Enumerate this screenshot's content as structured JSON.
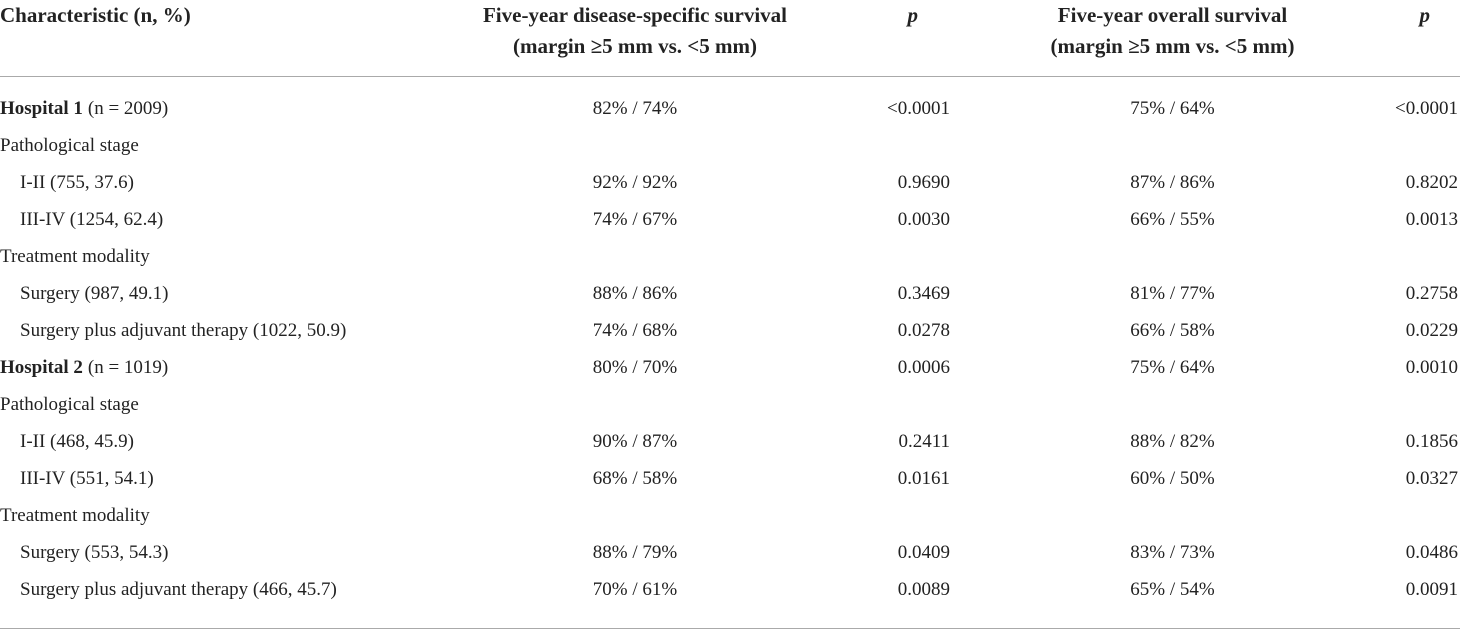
{
  "table": {
    "header": [
      [
        "Characteristic (n, %)"
      ],
      [
        "Five-year disease-specific survival",
        "(margin ≥5 mm vs. <5 mm)"
      ],
      [
        "p"
      ],
      [
        "Five-year overall survival",
        "(margin ≥5 mm vs. <5 mm)"
      ],
      [
        "p"
      ]
    ],
    "rows": [
      {
        "bold": "Hospital 1",
        "label": "(n = 2009)",
        "dss": "82% / 74%",
        "p_dss": "<0.0001",
        "os": "75% / 64%",
        "p_os": "<0.0001"
      },
      {
        "label": "Pathological stage"
      },
      {
        "label": "I-II (755, 37.6)",
        "dss": "92% / 92%",
        "p_dss": "0.9690",
        "os": "87% / 86%",
        "p_os": "0.8202"
      },
      {
        "label": "III-IV (1254, 62.4)",
        "dss": "74% / 67%",
        "p_dss": "0.0030",
        "os": "66% / 55%",
        "p_os": "0.0013"
      },
      {
        "label": "Treatment modality"
      },
      {
        "label": "Surgery (987, 49.1)",
        "dss": "88% / 86%",
        "p_dss": "0.3469",
        "os": "81% / 77%",
        "p_os": "0.2758"
      },
      {
        "label": "Surgery plus adjuvant therapy (1022, 50.9)",
        "dss": "74% / 68%",
        "p_dss": "0.0278",
        "os": "66% / 58%",
        "p_os": "0.0229"
      },
      {
        "bold": "Hospital 2",
        "label": "(n = 1019)",
        "dss": "80% / 70%",
        "p_dss": "0.0006",
        "os": "75% / 64%",
        "p_os": "0.0010"
      },
      {
        "label": "Pathological stage"
      },
      {
        "label": "I-II (468, 45.9)",
        "dss": "90% / 87%",
        "p_dss": "0.2411",
        "os": "88% / 82%",
        "p_os": "0.1856"
      },
      {
        "label": "III-IV (551, 54.1)",
        "dss": "68% / 58%",
        "p_dss": "0.0161",
        "os": "60% / 50%",
        "p_os": "0.0327"
      },
      {
        "label": "Treatment modality"
      },
      {
        "label": "Surgery (553, 54.3)",
        "dss": "88% / 79%",
        "p_dss": "0.0409",
        "os": "83% / 73%",
        "p_os": "0.0486"
      },
      {
        "label": "Surgery plus adjuvant therapy (466, 45.7)",
        "dss": "70% / 61%",
        "p_dss": "0.0089",
        "os": "65% / 54%",
        "p_os": "0.0091"
      }
    ]
  }
}
